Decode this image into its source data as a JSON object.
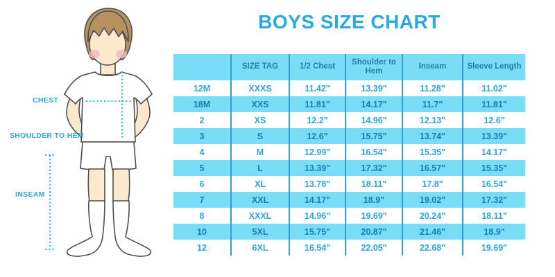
{
  "title": "BOYS SIZE CHART",
  "figure": {
    "labels": {
      "chest": "CHEST",
      "shoulder_to_hem": "SHOULDER TO HEM",
      "inseam": "INSEAM"
    }
  },
  "colors": {
    "title_blue": "#29A9E0",
    "table_header_bg": "#79DDF8",
    "table_header_text": "#1D7EA9",
    "row_alt_bg": "#79DDF8",
    "row_text_on_white": "#2BA7DF",
    "row_text_on_blue": "#177FB2",
    "grid_line": "#2F9FCE",
    "dotted_measure_line": "#2BBFEA",
    "measure_label_text": "#29A8DF",
    "skin": "#FBE9CE",
    "hair": "#B7915F"
  },
  "chart_data": {
    "type": "table",
    "title": "BOYS SIZE CHART",
    "columns": [
      "",
      "SIZE TAG",
      "1/2 Chest",
      "Shoulder to Hem",
      "Inseam",
      "Sleeve Length"
    ],
    "rows": [
      [
        "12M",
        "XXXS",
        "11.42\"",
        "13.39\"",
        "11.28\"",
        "11.02\""
      ],
      [
        "18M",
        "XXS",
        "11.81\"",
        "14.17\"",
        "11.7\"",
        "11.81\""
      ],
      [
        "2",
        "XS",
        "12.2\"",
        "14.96\"",
        "12.13\"",
        "12.6\""
      ],
      [
        "3",
        "S",
        "12.6\"",
        "15.75\"",
        "13.74\"",
        "13.39\""
      ],
      [
        "4",
        "M",
        "12.99\"",
        "16.54\"",
        "15.35\"",
        "14.17\""
      ],
      [
        "5",
        "L",
        "13.39\"",
        "17.32\"",
        "16.57\"",
        "15.35\""
      ],
      [
        "6",
        "XL",
        "13.78\"",
        "18.11\"",
        "17.8\"",
        "16.54\""
      ],
      [
        "7",
        "XXL",
        "14.17\"",
        "18.9\"",
        "19.02\"",
        "17.32\""
      ],
      [
        "8",
        "XXXL",
        "14.96\"",
        "19.69\"",
        "20.24\"",
        "18.11\""
      ],
      [
        "10",
        "5XL",
        "15.75\"",
        "20.87\"",
        "21.46\"",
        "18.9\""
      ],
      [
        "12",
        "6XL",
        "16.54\"",
        "22.05\"",
        "22.68\"",
        "19.69\""
      ]
    ],
    "row_striping": "rows alternate white / light-blue starting with white",
    "legend_position": "none",
    "grid": "vertical column separators only"
  }
}
